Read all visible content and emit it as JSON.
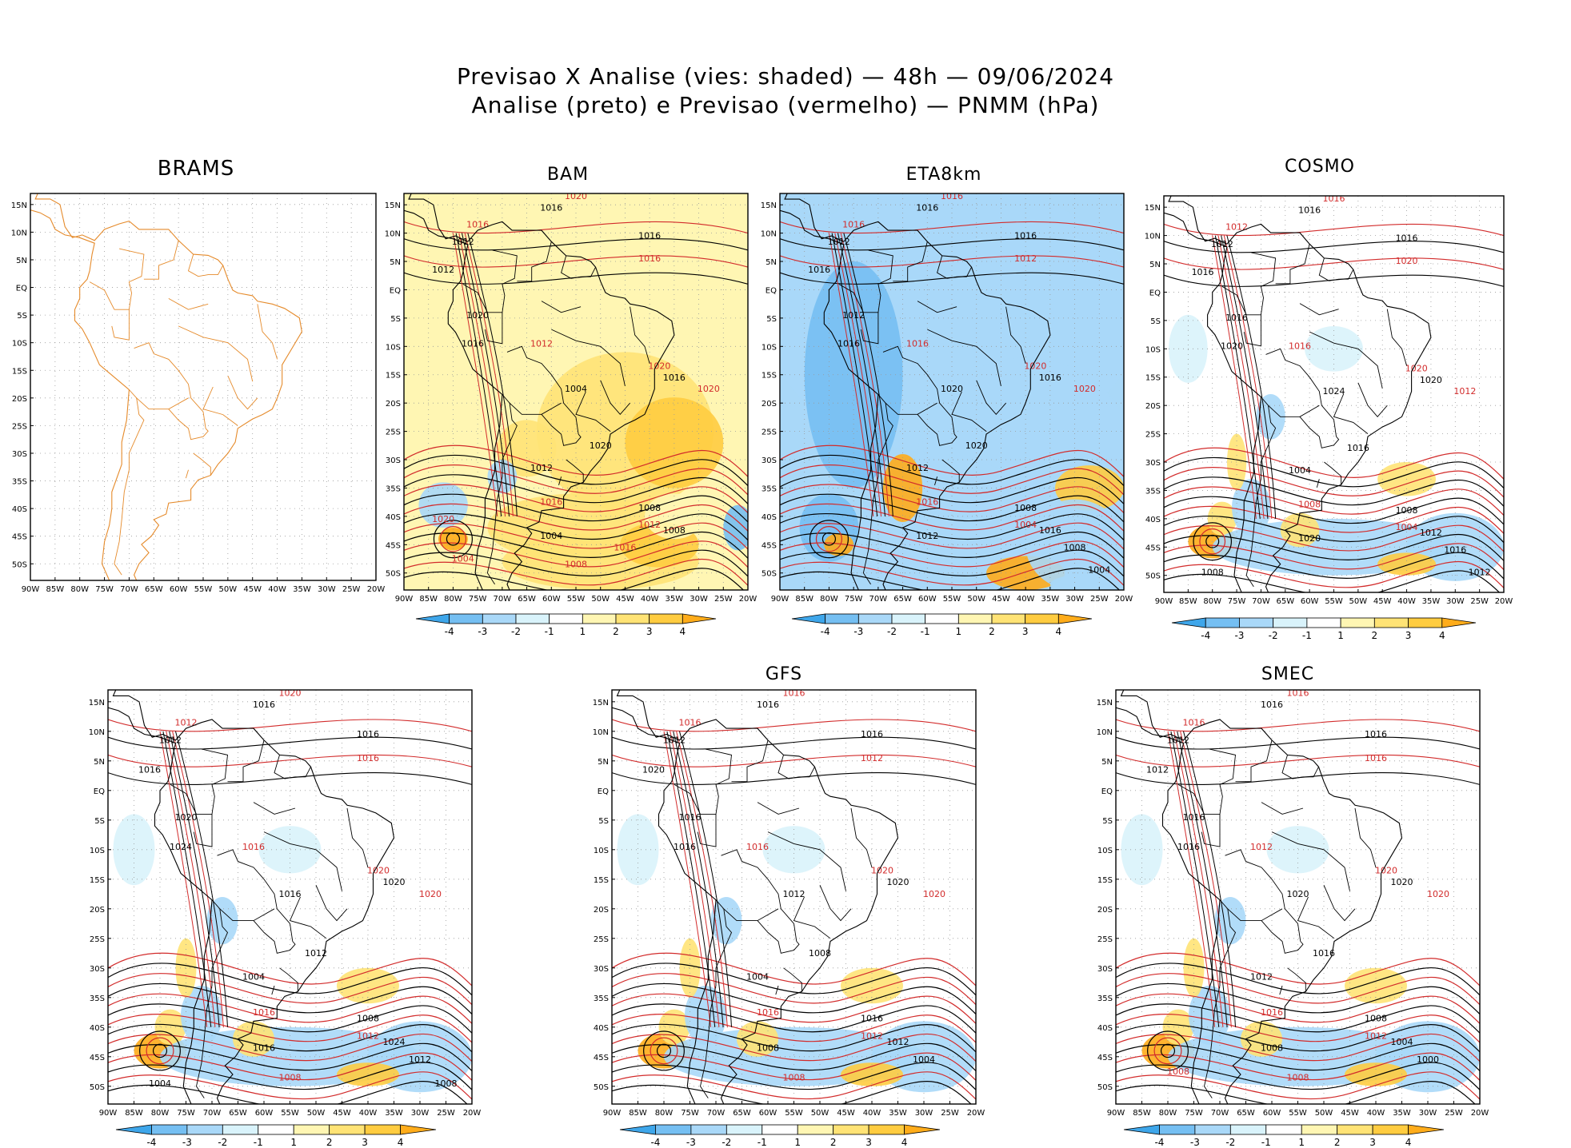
{
  "header": {
    "line1": "Previsao X Analise (vies: shaded) — 48h — 09/06/2024",
    "line2": "Analise (preto) e Previsao (vermelho) — PNMM (hPa)"
  },
  "axes": {
    "lat_labels": [
      "15N",
      "10N",
      "5N",
      "EQ",
      "5S",
      "10S",
      "15S",
      "20S",
      "25S",
      "30S",
      "35S",
      "40S",
      "45S",
      "50S"
    ],
    "lon_labels": [
      "90W",
      "85W",
      "80W",
      "75W",
      "70W",
      "65W",
      "60W",
      "55W",
      "50W",
      "45W",
      "40W",
      "35W",
      "30W",
      "25W",
      "20W"
    ]
  },
  "colorbar": {
    "labels": [
      "-4",
      "-3",
      "-2",
      "-1",
      "1",
      "2",
      "3",
      "4"
    ],
    "colors": [
      "#3ea6ea",
      "#75bff2",
      "#a9d8f8",
      "#d9f3fb",
      "#ffffff",
      "#fff6b3",
      "#ffe375",
      "#ffcc40",
      "#ffac1a"
    ]
  },
  "contour_colors": {
    "analysis": "#000000",
    "forecast": "#d22b2b",
    "coast": "#e58a2a"
  },
  "panels": [
    {
      "id": "brams",
      "title": "BRAMS",
      "has_colorbar": false,
      "bias_mode": "none",
      "labels_black": [],
      "labels_red": []
    },
    {
      "id": "bam",
      "title": "BAM",
      "has_colorbar": true,
      "bias_mode": "warm",
      "labels_black": [
        "1016",
        "1012",
        "1016",
        "1012",
        "1020",
        "1016",
        "1004",
        "1016",
        "1020",
        "1012",
        "1008",
        "1008",
        "1004"
      ],
      "labels_red": [
        "1020",
        "1016",
        "1016",
        "1012",
        "1020",
        "1020",
        "1016",
        "1012",
        "1008",
        "1004",
        "1020",
        "1016"
      ]
    },
    {
      "id": "eta8km",
      "title": "ETA8km",
      "has_colorbar": true,
      "bias_mode": "cold",
      "labels_black": [
        "1016",
        "1012",
        "1016",
        "1016",
        "1012",
        "1016",
        "1020",
        "1016",
        "1020",
        "1012",
        "1008",
        "1016",
        "1012",
        "1008",
        "1004"
      ],
      "labels_red": [
        "1016",
        "1016",
        "1012",
        "1016",
        "1020",
        "1020",
        "1016",
        "1004"
      ]
    },
    {
      "id": "cosmo",
      "title": "COSMO",
      "has_colorbar": true,
      "bias_mode": "mixed",
      "labels_black": [
        "1016",
        "1012",
        "1016",
        "1016",
        "1016",
        "1020",
        "1024",
        "1020",
        "1016",
        "1004",
        "1008",
        "1012",
        "1020",
        "1016",
        "1012",
        "1008"
      ],
      "labels_red": [
        "1016",
        "1012",
        "1020",
        "1016",
        "1020",
        "1012",
        "1008",
        "1004"
      ]
    },
    {
      "id": "panel5",
      "title": "",
      "has_colorbar": true,
      "bias_mode": "mixed",
      "labels_black": [
        "1016",
        "1012",
        "1016",
        "1016",
        "1020",
        "1024",
        "1016",
        "1020",
        "1012",
        "1004",
        "1008",
        "1024",
        "1016",
        "1012",
        "1008",
        "1004"
      ],
      "labels_red": [
        "1020",
        "1012",
        "1016",
        "1016",
        "1020",
        "1020",
        "1016",
        "1012",
        "1008"
      ]
    },
    {
      "id": "gfs",
      "title": "GFS",
      "has_colorbar": true,
      "bias_mode": "mixed",
      "labels_black": [
        "1016",
        "1012",
        "1016",
        "1020",
        "1016",
        "1016",
        "1012",
        "1020",
        "1008",
        "1004",
        "1016",
        "1012",
        "1008",
        "1004"
      ],
      "labels_red": [
        "1016",
        "1016",
        "1012",
        "1016",
        "1020",
        "1020",
        "1016",
        "1012",
        "1008"
      ]
    },
    {
      "id": "smec",
      "title": "SMEC",
      "has_colorbar": true,
      "bias_mode": "mixed",
      "labels_black": [
        "1016",
        "1012",
        "1016",
        "1012",
        "1016",
        "1016",
        "1020",
        "1020",
        "1016",
        "1012",
        "1008",
        "1004",
        "1008",
        "1000"
      ],
      "labels_red": [
        "1016",
        "1016",
        "1016",
        "1012",
        "1020",
        "1020",
        "1016",
        "1012",
        "1008",
        "1008"
      ]
    }
  ]
}
